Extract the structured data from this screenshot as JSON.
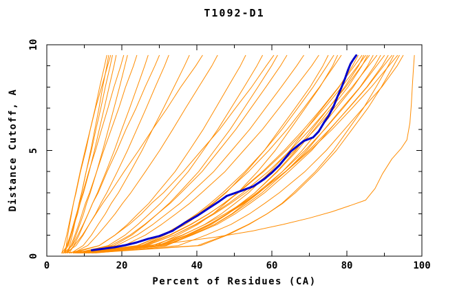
{
  "colors": {
    "background": "#FFFFFF",
    "axis": "#000000",
    "text": "#000000",
    "model_line": "#FF8C00",
    "highlight_line": "#0000CC"
  },
  "chart_data": {
    "type": "line",
    "title": "T1092-D1",
    "xlabel": "Percent of Residues (CA)",
    "ylabel": "Distance Cutoff, A",
    "xlim": [
      0,
      100
    ],
    "ylim": [
      0,
      10
    ],
    "grid": false,
    "legend": "none",
    "x_ticks_major": {
      "values": [
        0,
        20,
        40,
        60,
        80,
        100
      ],
      "labels": [
        "0",
        "20",
        "40",
        "60",
        "80",
        "100"
      ]
    },
    "x_ticks_minor": [
      10,
      30,
      50,
      70,
      90
    ],
    "y_ticks_major": {
      "values": [
        0,
        5,
        10
      ],
      "labels": [
        "0",
        "5",
        "10"
      ]
    },
    "y_ticks_minor": [
      1,
      2,
      3,
      4,
      6,
      7,
      8,
      9
    ],
    "y_levels": [
      0.15,
      0.5,
      1,
      1.5,
      2,
      2.5,
      3,
      4,
      5,
      6,
      7,
      8,
      9,
      9.5
    ],
    "models_x_at_levels": [
      [
        4.0,
        4.6,
        5.3,
        5.9,
        6.5,
        7.1,
        7.8,
        9.0,
        10.4,
        11.6,
        12.9,
        14.1,
        15.4,
        16.0
      ],
      [
        4.5,
        5.7,
        6.5,
        7.3,
        8.0,
        8.6,
        9.3,
        10.5,
        11.7,
        12.8,
        13.9,
        14.9,
        16.0,
        16.5
      ],
      [
        5.0,
        5.2,
        5.6,
        6.1,
        6.6,
        7.1,
        7.7,
        8.9,
        10.2,
        11.6,
        13.0,
        14.6,
        16.2,
        17.0
      ],
      [
        5.5,
        6.1,
        6.8,
        7.4,
        8.0,
        8.6,
        9.3,
        10.5,
        11.9,
        13.1,
        14.4,
        15.6,
        16.9,
        17.5
      ],
      [
        4.0,
        5.5,
        6.5,
        7.3,
        8.2,
        8.9,
        9.8,
        11.3,
        12.7,
        14.0,
        15.3,
        16.6,
        17.9,
        18.5
      ],
      [
        4.5,
        5.3,
        6.3,
        7.1,
        7.9,
        8.7,
        9.6,
        11.2,
        13.0,
        14.6,
        16.3,
        17.9,
        19.7,
        20.5
      ],
      [
        5.0,
        6.7,
        7.8,
        8.8,
        9.8,
        10.6,
        11.6,
        13.3,
        14.9,
        16.4,
        17.9,
        19.4,
        20.8,
        21.5
      ],
      [
        5.5,
        6.4,
        7.5,
        8.5,
        9.4,
        10.3,
        11.4,
        13.3,
        15.2,
        17.2,
        19.2,
        21.0,
        23.1,
        24.0
      ],
      [
        4.5,
        6.8,
        8.3,
        9.7,
        11.0,
        12.2,
        13.5,
        15.8,
        18.0,
        20.0,
        22.1,
        24.1,
        26.1,
        27.0
      ],
      [
        6.0,
        7.2,
        8.6,
        9.8,
        11.0,
        12.2,
        13.7,
        16.1,
        18.7,
        21.1,
        23.8,
        26.2,
        28.8,
        30.0
      ],
      [
        5.0,
        7.8,
        9.7,
        11.3,
        13.0,
        14.4,
        16.0,
        18.8,
        21.5,
        24.0,
        26.5,
        28.9,
        31.4,
        32.5
      ],
      [
        6.5,
        9.7,
        11.9,
        13.7,
        15.6,
        17.2,
        19.1,
        22.3,
        25.4,
        28.2,
        31.1,
        33.9,
        36.7,
        38.0
      ],
      [
        5.5,
        7.3,
        9.5,
        11.3,
        13.1,
        14.9,
        16.9,
        20.6,
        24.5,
        28.2,
        32.1,
        35.7,
        39.7,
        41.5
      ],
      [
        7.0,
        10.9,
        13.5,
        15.9,
        18.2,
        20.2,
        22.4,
        26.3,
        30.1,
        33.6,
        37.0,
        40.5,
        44.0,
        45.5
      ],
      [
        6.0,
        14.0,
        18.2,
        21.5,
        24.3,
        27.2,
        29.5,
        34.2,
        38.0,
        41.7,
        45.0,
        48.3,
        51.6,
        53.0
      ],
      [
        8.0,
        16.4,
        20.9,
        24.3,
        27.3,
        30.3,
        32.8,
        37.7,
        41.7,
        45.6,
        49.1,
        52.6,
        56.0,
        57.5
      ],
      [
        7.0,
        14.0,
        18.2,
        22.0,
        25.2,
        27.9,
        31.1,
        36.4,
        41.2,
        46.1,
        50.3,
        54.6,
        58.5,
        60.5
      ],
      [
        9.0,
        17.9,
        22.7,
        26.3,
        29.5,
        32.6,
        35.3,
        40.5,
        44.7,
        48.9,
        52.6,
        56.3,
        59.9,
        61.5
      ],
      [
        7.5,
        17.1,
        22.2,
        26.1,
        29.5,
        32.9,
        35.8,
        41.4,
        45.9,
        50.4,
        54.4,
        58.4,
        62.3,
        64.0
      ],
      [
        8.5,
        18.7,
        24.1,
        28.3,
        31.9,
        35.5,
        38.5,
        44.5,
        49.3,
        54.1,
        58.3,
        62.5,
        66.6,
        68.5
      ],
      [
        10.0,
        20.6,
        26.3,
        30.6,
        34.4,
        38.1,
        41.3,
        47.5,
        52.5,
        57.5,
        61.9,
        66.3,
        70.6,
        72.5
      ],
      [
        7.0,
        25.4,
        31.5,
        36.9,
        41.0,
        44.4,
        47.8,
        53.2,
        58.0,
        62.1,
        66.2,
        70.2,
        73.6,
        75.0
      ],
      [
        9.0,
        24.5,
        30.9,
        35.8,
        40.0,
        43.6,
        46.9,
        52.8,
        58.0,
        62.7,
        66.9,
        71.0,
        74.7,
        76.5
      ],
      [
        11.0,
        29.0,
        34.9,
        40.3,
        44.3,
        47.6,
        50.9,
        56.2,
        60.9,
        64.9,
        68.9,
        72.8,
        76.2,
        77.5
      ],
      [
        8.0,
        24.1,
        30.9,
        36.0,
        40.4,
        44.2,
        47.6,
        53.8,
        59.2,
        64.1,
        68.5,
        72.7,
        76.6,
        78.5
      ],
      [
        10.0,
        29.7,
        36.3,
        42.1,
        46.5,
        50.2,
        53.8,
        59.6,
        64.8,
        69.1,
        73.5,
        77.9,
        81.5,
        83.0
      ],
      [
        8.5,
        25.8,
        33.0,
        38.5,
        43.2,
        47.2,
        50.9,
        57.5,
        63.3,
        68.5,
        73.3,
        77.8,
        82.0,
        84.0
      ],
      [
        12.0,
        31.6,
        38.1,
        43.9,
        48.3,
        51.9,
        55.5,
        61.3,
        66.4,
        70.7,
        75.1,
        79.4,
        83.1,
        84.5
      ],
      [
        7.5,
        25.2,
        32.7,
        38.3,
        43.1,
        47.3,
        51.1,
        57.8,
        63.8,
        69.1,
        74.0,
        78.6,
        82.9,
        85.0
      ],
      [
        10.5,
        30.8,
        37.5,
        43.5,
        48.0,
        51.8,
        55.5,
        61.5,
        66.8,
        71.3,
        75.8,
        80.3,
        84.0,
        85.5
      ],
      [
        9.0,
        26.6,
        34.0,
        39.6,
        44.3,
        48.5,
        52.3,
        59.0,
        64.9,
        70.2,
        75.1,
        79.7,
        83.9,
        86.0
      ],
      [
        11.5,
        31.9,
        38.7,
        44.7,
        49.3,
        52.9,
        56.6,
        62.8,
        68.1,
        72.7,
        77.2,
        81.7,
        85.5,
        87.0
      ],
      [
        8.0,
        26.3,
        34.0,
        39.8,
        44.7,
        49.0,
        53.0,
        59.9,
        66.1,
        71.6,
        76.6,
        81.4,
        85.8,
        88.0
      ],
      [
        10.0,
        31.3,
        38.4,
        44.8,
        49.5,
        53.5,
        57.4,
        63.7,
        69.3,
        74.0,
        78.7,
        83.5,
        87.4,
        89.0
      ],
      [
        12.5,
        30.2,
        37.7,
        43.3,
        48.1,
        52.3,
        56.1,
        62.8,
        68.8,
        74.1,
        79.0,
        83.6,
        87.9,
        90.0
      ],
      [
        9.5,
        31.5,
        38.8,
        45.4,
        50.2,
        54.2,
        58.1,
        64.5,
        70.6,
        75.5,
        80.4,
        85.3,
        89.4,
        91.0
      ],
      [
        11.0,
        29.5,
        37.3,
        43.2,
        48.2,
        52.6,
        56.5,
        63.6,
        69.8,
        75.4,
        80.5,
        85.4,
        89.8,
        92.0
      ],
      [
        8.5,
        28.0,
        36.1,
        42.2,
        47.5,
        52.1,
        56.3,
        63.7,
        70.2,
        76.1,
        81.4,
        86.5,
        91.2,
        93.5
      ],
      [
        13.0,
        35.1,
        42.5,
        49.1,
        54.0,
        58.1,
        62.0,
        68.8,
        74.5,
        79.4,
        84.3,
        89.3,
        93.4,
        95.0
      ],
      [
        10.0,
        40.2,
        47.8,
        53.7,
        58.7,
        62.9,
        66.3,
        72.1,
        77.2,
        81.4,
        85.6,
        89.2,
        92.4,
        94.0
      ],
      [
        12.0,
        41.0,
        48.2,
        53.9,
        58.7,
        62.7,
        65.8,
        71.6,
        76.4,
        80.4,
        84.4,
        87.8,
        91.0,
        92.5
      ]
    ],
    "outlier_model_points": [
      [
        4,
        0.15
      ],
      [
        18,
        0.35
      ],
      [
        32,
        0.6
      ],
      [
        45,
        0.9
      ],
      [
        55,
        1.2
      ],
      [
        63,
        1.5
      ],
      [
        70,
        1.8
      ],
      [
        76,
        2.1
      ],
      [
        81,
        2.4
      ],
      [
        85,
        2.65
      ],
      [
        87.5,
        3.2
      ],
      [
        89.5,
        3.9
      ],
      [
        92,
        4.6
      ],
      [
        94.5,
        5.1
      ],
      [
        96,
        5.5
      ],
      [
        96.8,
        6.3
      ],
      [
        97.2,
        7.2
      ],
      [
        97.5,
        8.2
      ],
      [
        97.8,
        9.0
      ],
      [
        98,
        9.5
      ]
    ],
    "highlight_model_points": [
      [
        12,
        0.28
      ],
      [
        15,
        0.35
      ],
      [
        18,
        0.42
      ],
      [
        21,
        0.52
      ],
      [
        24,
        0.65
      ],
      [
        27,
        0.82
      ],
      [
        30,
        0.95
      ],
      [
        33.5,
        1.2
      ],
      [
        37,
        1.6
      ],
      [
        40,
        1.9
      ],
      [
        43,
        2.25
      ],
      [
        46,
        2.6
      ],
      [
        48,
        2.85
      ],
      [
        52,
        3.1
      ],
      [
        55,
        3.3
      ],
      [
        58,
        3.65
      ],
      [
        60,
        3.95
      ],
      [
        62,
        4.3
      ],
      [
        65,
        4.95
      ],
      [
        68.5,
        5.45
      ],
      [
        71,
        5.62
      ],
      [
        72.5,
        5.9
      ],
      [
        74,
        6.35
      ],
      [
        75,
        6.6
      ],
      [
        76.5,
        7.1
      ],
      [
        77.5,
        7.55
      ],
      [
        78.5,
        7.95
      ],
      [
        79.5,
        8.4
      ],
      [
        80.3,
        8.8
      ],
      [
        81,
        9.1
      ],
      [
        81.7,
        9.3
      ],
      [
        82.5,
        9.5
      ]
    ]
  }
}
